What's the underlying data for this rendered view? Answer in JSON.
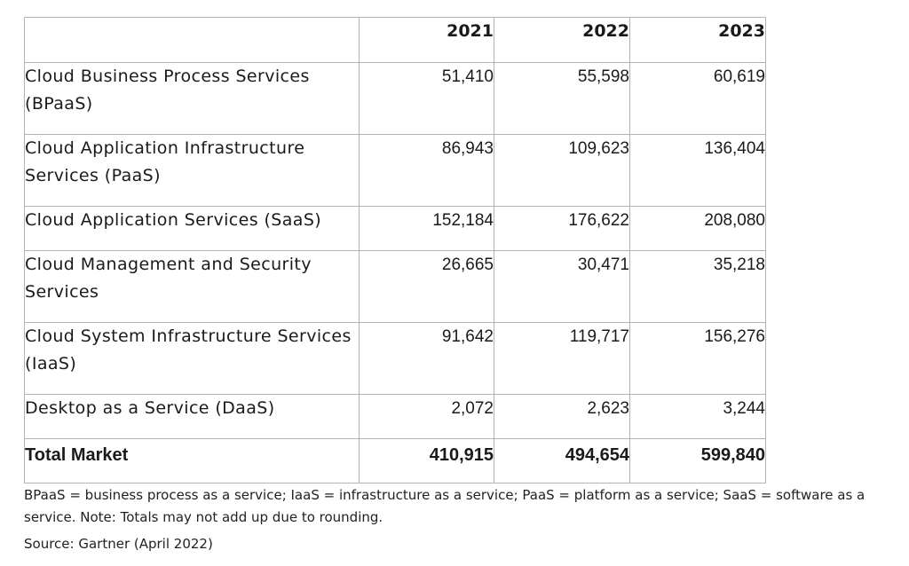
{
  "table": {
    "columns": [
      "",
      "2021",
      "2022",
      "2023"
    ],
    "rows": [
      {
        "label": "Cloud Business Process Services (BPaaS)",
        "values": [
          "51,410",
          "55,598",
          "60,619"
        ]
      },
      {
        "label": "Cloud Application Infrastructure Services (PaaS)",
        "values": [
          "86,943",
          "109,623",
          "136,404"
        ]
      },
      {
        "label": "Cloud Application Services (SaaS)",
        "values": [
          "152,184",
          "176,622",
          "208,080"
        ]
      },
      {
        "label": "Cloud Management and Security Services",
        "values": [
          "26,665",
          "30,471",
          "35,218"
        ]
      },
      {
        "label": "Cloud System Infrastructure Services (IaaS)",
        "values": [
          "91,642",
          "119,717",
          "156,276"
        ]
      },
      {
        "label": "Desktop as a Service (DaaS)",
        "values": [
          "2,072",
          "2,623",
          "3,244"
        ]
      }
    ],
    "total": {
      "label": "Total Market",
      "values": [
        "410,915",
        "494,654",
        "599,840"
      ]
    }
  },
  "note": "BPaaS = business process as a service; IaaS = infrastructure as a service; PaaS = platform as a service; SaaS = software as a service. Note: Totals may not add up due to rounding.",
  "source": "Source: Gartner (April 2022)"
}
